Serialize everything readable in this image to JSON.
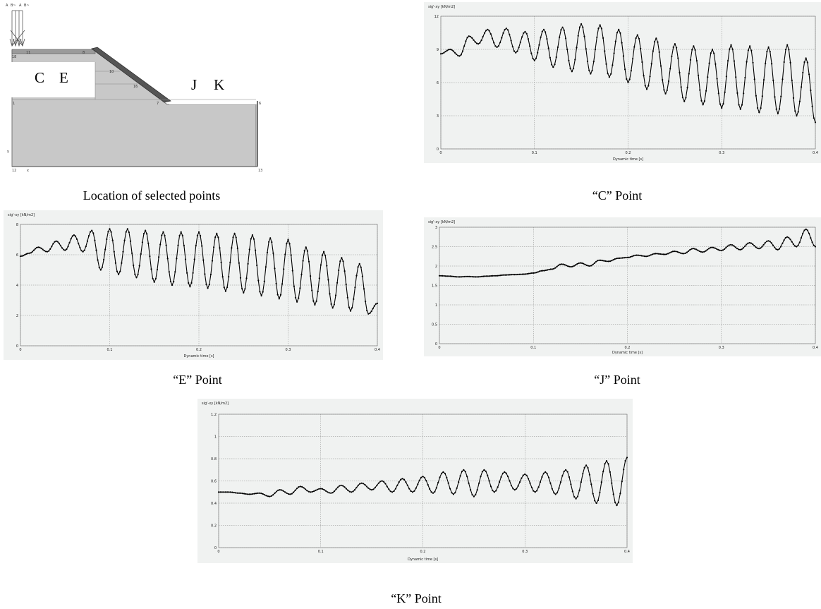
{
  "captions": {
    "geometry": "Location of selected points",
    "c": "“C” Point",
    "e": "“E” Point",
    "j": "“J” Point",
    "k": "“K” Point"
  },
  "geometry": {
    "labels": [
      "C",
      "E",
      "J",
      "K"
    ],
    "node_labels": [
      "A",
      "B~",
      "A",
      "B~",
      "11",
      "8",
      "18",
      "10",
      "16",
      "7",
      "1",
      "6",
      "y",
      "x",
      "12",
      "13"
    ]
  },
  "colors": {
    "panel_bg": "#f0f2f1",
    "series": "#000000",
    "grid": "#888888",
    "soil": "#c8c8c8",
    "slope": "#555555"
  },
  "chart_data": [
    {
      "id": "C",
      "type": "line",
      "ylabel": "sig'-xy [kN/m2]",
      "xlabel": "Dynamic time [s]",
      "xlim": [
        0,
        0.4
      ],
      "ylim": [
        0,
        12
      ],
      "xticks": [
        0,
        0.1,
        0.2,
        0.3,
        0.4
      ],
      "yticks": [
        0,
        3,
        6,
        9,
        12
      ],
      "grid": true,
      "series": [
        {
          "x": [
            0,
            0.01,
            0.02,
            0.03,
            0.04,
            0.05,
            0.06,
            0.07,
            0.08,
            0.09,
            0.1,
            0.11,
            0.12,
            0.13,
            0.14,
            0.15,
            0.16,
            0.17,
            0.18,
            0.19,
            0.2,
            0.21,
            0.22,
            0.23,
            0.24,
            0.25,
            0.26,
            0.27,
            0.28,
            0.29,
            0.3,
            0.31,
            0.32,
            0.33,
            0.34,
            0.35,
            0.36,
            0.37,
            0.38,
            0.39,
            0.4
          ],
          "y": [
            8.6,
            9.0,
            8.4,
            10.2,
            9.5,
            10.8,
            9.2,
            10.9,
            8.7,
            10.6,
            8.0,
            10.8,
            7.4,
            11.0,
            7.0,
            11.3,
            6.8,
            11.2,
            6.5,
            10.8,
            6.0,
            10.3,
            5.4,
            10.0,
            5.0,
            9.5,
            4.3,
            9.3,
            4.0,
            9.0,
            3.7,
            9.4,
            3.6,
            9.3,
            3.3,
            9.2,
            3.2,
            9.4,
            3.0,
            8.2,
            2.4
          ],
          "extent": "dense oscillation"
        }
      ]
    },
    {
      "id": "E",
      "type": "line",
      "ylabel": "sig'-xy [kN/m2]",
      "xlabel": "Dynamic time [s]",
      "xlim": [
        0,
        0.4
      ],
      "ylim": [
        0,
        8
      ],
      "xticks": [
        0,
        0.1,
        0.2,
        0.3,
        0.4
      ],
      "yticks": [
        0,
        2,
        4,
        6,
        8
      ],
      "grid": true,
      "series": [
        {
          "x": [
            0,
            0.01,
            0.02,
            0.03,
            0.04,
            0.05,
            0.06,
            0.07,
            0.08,
            0.09,
            0.1,
            0.11,
            0.12,
            0.13,
            0.14,
            0.15,
            0.16,
            0.17,
            0.18,
            0.19,
            0.2,
            0.21,
            0.22,
            0.23,
            0.24,
            0.25,
            0.26,
            0.27,
            0.28,
            0.29,
            0.3,
            0.31,
            0.32,
            0.33,
            0.34,
            0.35,
            0.36,
            0.37,
            0.38,
            0.39,
            0.4
          ],
          "y": [
            5.9,
            6.1,
            6.5,
            6.2,
            6.9,
            6.3,
            7.3,
            6.2,
            7.6,
            5.0,
            7.7,
            4.7,
            7.7,
            4.5,
            7.6,
            4.2,
            7.5,
            4.0,
            7.5,
            3.9,
            7.5,
            3.8,
            7.4,
            3.6,
            7.4,
            3.5,
            7.3,
            3.3,
            7.1,
            3.1,
            7.0,
            2.9,
            6.5,
            2.7,
            6.2,
            2.5,
            5.8,
            2.3,
            5.4,
            2.1,
            2.8
          ],
          "extent": "dense oscillation"
        }
      ]
    },
    {
      "id": "J",
      "type": "line",
      "ylabel": "sig'-xy [kN/m2]",
      "xlabel": "Dynamic time [s]",
      "xlim": [
        0,
        0.4
      ],
      "ylim": [
        0,
        3
      ],
      "xticks": [
        0,
        0.1,
        0.2,
        0.3,
        0.4
      ],
      "yticks": [
        0,
        0.5,
        1,
        1.5,
        2,
        2.5,
        3
      ],
      "grid": true,
      "series": [
        {
          "x": [
            0,
            0.01,
            0.02,
            0.03,
            0.04,
            0.05,
            0.06,
            0.07,
            0.08,
            0.09,
            0.1,
            0.11,
            0.12,
            0.13,
            0.14,
            0.15,
            0.16,
            0.17,
            0.18,
            0.19,
            0.2,
            0.21,
            0.22,
            0.23,
            0.24,
            0.25,
            0.26,
            0.27,
            0.28,
            0.29,
            0.3,
            0.31,
            0.32,
            0.33,
            0.34,
            0.35,
            0.36,
            0.37,
            0.38,
            0.39,
            0.4
          ],
          "y": [
            1.75,
            1.74,
            1.72,
            1.73,
            1.72,
            1.74,
            1.75,
            1.77,
            1.78,
            1.79,
            1.82,
            1.88,
            1.92,
            2.05,
            1.98,
            2.08,
            2.0,
            2.15,
            2.12,
            2.2,
            2.22,
            2.28,
            2.25,
            2.32,
            2.3,
            2.38,
            2.32,
            2.45,
            2.36,
            2.48,
            2.4,
            2.55,
            2.42,
            2.6,
            2.45,
            2.65,
            2.42,
            2.75,
            2.5,
            2.95,
            2.5
          ]
        }
      ]
    },
    {
      "id": "K",
      "type": "line",
      "ylabel": "sig'-xy [kN/m2]",
      "xlabel": "Dynamic time [s]",
      "xlim": [
        0,
        0.4
      ],
      "ylim": [
        0,
        1.2
      ],
      "xticks": [
        0,
        0.1,
        0.2,
        0.3,
        0.4
      ],
      "yticks": [
        0,
        0.2,
        0.4,
        0.6,
        0.8,
        1,
        1.2
      ],
      "grid": true,
      "series": [
        {
          "x": [
            0,
            0.01,
            0.02,
            0.03,
            0.04,
            0.05,
            0.06,
            0.07,
            0.08,
            0.09,
            0.1,
            0.11,
            0.12,
            0.13,
            0.14,
            0.15,
            0.16,
            0.17,
            0.18,
            0.19,
            0.2,
            0.21,
            0.22,
            0.23,
            0.24,
            0.25,
            0.26,
            0.27,
            0.28,
            0.29,
            0.3,
            0.31,
            0.32,
            0.33,
            0.34,
            0.35,
            0.36,
            0.37,
            0.38,
            0.39,
            0.4
          ],
          "y": [
            0.5,
            0.5,
            0.49,
            0.48,
            0.49,
            0.46,
            0.52,
            0.48,
            0.55,
            0.5,
            0.53,
            0.49,
            0.56,
            0.5,
            0.58,
            0.52,
            0.6,
            0.5,
            0.62,
            0.5,
            0.64,
            0.49,
            0.68,
            0.48,
            0.7,
            0.46,
            0.7,
            0.5,
            0.68,
            0.52,
            0.66,
            0.5,
            0.68,
            0.48,
            0.7,
            0.44,
            0.74,
            0.4,
            0.78,
            0.38,
            0.81
          ]
        }
      ]
    }
  ]
}
